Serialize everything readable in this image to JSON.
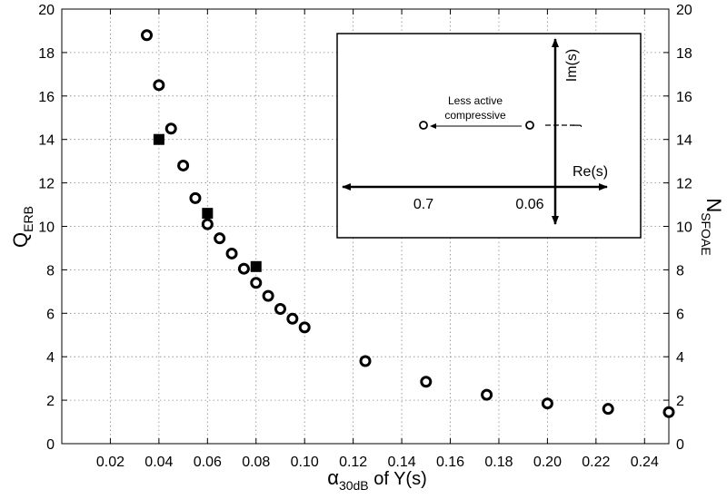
{
  "chart_data": {
    "type": "scatter",
    "xlabel": {
      "main": "α",
      "sub": "30dB",
      "suffix": " of Y(s)"
    },
    "ylabel_left": {
      "main": "Q",
      "sub": "ERB"
    },
    "ylabel_right": {
      "main": "N",
      "sub": "SFOAE"
    },
    "xlim": [
      0,
      0.25
    ],
    "ylim": [
      0,
      20
    ],
    "x_ticks": [
      0.02,
      0.04,
      0.06,
      0.08,
      0.1,
      0.12,
      0.14,
      0.16,
      0.18,
      0.2,
      0.22,
      0.24
    ],
    "x_tick_labels": [
      "0.02",
      "0.04",
      "0.06",
      "0.08",
      "0.10",
      "0.12",
      "0.14",
      "0.16",
      "0.18",
      "0.20",
      "0.22",
      "0.24"
    ],
    "y_ticks": [
      0,
      2,
      4,
      6,
      8,
      10,
      12,
      14,
      16,
      18,
      20
    ],
    "y_tick_labels": [
      "0",
      "2",
      "4",
      "6",
      "8",
      "10",
      "12",
      "14",
      "16",
      "18",
      "20"
    ],
    "grid": true,
    "series": [
      {
        "marker": "open-circle",
        "points": [
          [
            0.035,
            18.8
          ],
          [
            0.04,
            16.5
          ],
          [
            0.045,
            14.5
          ],
          [
            0.05,
            12.8
          ],
          [
            0.055,
            11.3
          ],
          [
            0.06,
            10.1
          ],
          [
            0.065,
            9.45
          ],
          [
            0.07,
            8.75
          ],
          [
            0.075,
            8.05
          ],
          [
            0.08,
            7.4
          ],
          [
            0.085,
            6.8
          ],
          [
            0.09,
            6.2
          ],
          [
            0.095,
            5.75
          ],
          [
            0.1,
            5.35
          ],
          [
            0.125,
            3.8
          ],
          [
            0.15,
            2.85
          ],
          [
            0.175,
            2.25
          ],
          [
            0.2,
            1.85
          ],
          [
            0.225,
            1.6
          ],
          [
            0.25,
            1.45
          ]
        ]
      },
      {
        "marker": "filled-square",
        "points": [
          [
            0.04,
            14.0
          ],
          [
            0.06,
            10.6
          ],
          [
            0.08,
            8.15
          ]
        ]
      }
    ],
    "inset": {
      "arrow_label_line1": "Less active",
      "arrow_label_line2": "compressive",
      "re_axis_label": "Re(s)",
      "im_axis_label": "Im(s)",
      "tick_label_left": "0.7",
      "tick_label_right": "0.06",
      "im_tick_label": "j"
    }
  }
}
